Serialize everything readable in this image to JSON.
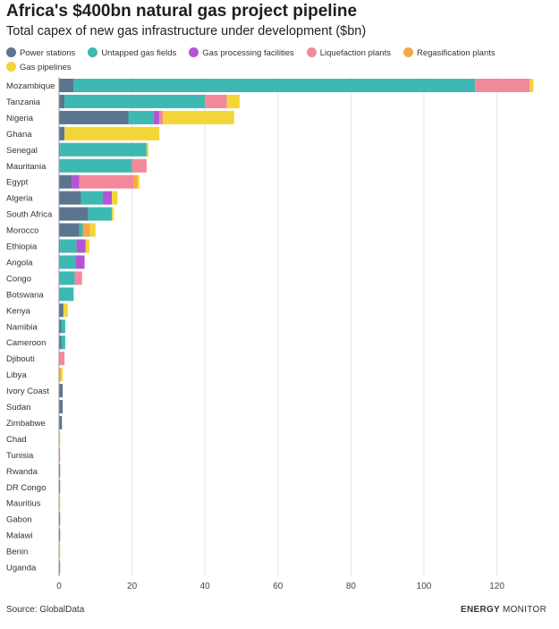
{
  "header": {
    "title": "Africa's $400bn natural gas project pipeline",
    "subtitle": "Total capex of new gas infrastructure under development ($bn)"
  },
  "footer": {
    "source": "Source: GlobalData",
    "brand_bold": "ENERGY",
    "brand_light": "MONITOR"
  },
  "chart_data": {
    "type": "bar",
    "orientation": "horizontal",
    "stacked": true,
    "categories": [
      "Mozambique",
      "Tanzania",
      "Nigeria",
      "Ghana",
      "Senegal",
      "Mauritania",
      "Egypt",
      "Algeria",
      "South Africa",
      "Morocco",
      "Ethiopia",
      "Angola",
      "Congo",
      "Botswana",
      "Kenya",
      "Namibia",
      "Cameroon",
      "Djibouti",
      "Libya",
      "Ivory Coast",
      "Sudan",
      "Zimbabwe",
      "Chad",
      "Tunisia",
      "Rwanda",
      "DR Congo",
      "Mauritius",
      "Gabon",
      "Malawi",
      "Benin",
      "Uganda"
    ],
    "xlim": [
      0,
      130
    ],
    "xticks": [
      0,
      20,
      40,
      60,
      80,
      100,
      120
    ],
    "grid": true,
    "legend_position": "top",
    "series": [
      {
        "name": "Power stations",
        "color": "#5b7490",
        "values": [
          4,
          1.5,
          19,
          1.5,
          0.3,
          0.2,
          3.5,
          6,
          8,
          5.5,
          0.3,
          0,
          0,
          0,
          1.2,
          0.7,
          0.7,
          0,
          0,
          1,
          1,
          0.8,
          0,
          0,
          0.3,
          0.3,
          0,
          0.3,
          0.3,
          0,
          0
        ]
      },
      {
        "name": "Untapped gas fields",
        "color": "#3db8b3",
        "values": [
          110,
          38.5,
          7,
          0,
          23.7,
          19.8,
          0,
          6,
          6.5,
          1,
          4.5,
          4.5,
          4.3,
          4,
          0,
          1,
          1,
          0,
          0,
          0,
          0,
          0,
          0,
          0,
          0,
          0,
          0,
          0,
          0,
          0,
          0
        ]
      },
      {
        "name": "Gas processing facilities",
        "color": "#b454d6",
        "values": [
          0,
          0,
          1.5,
          0,
          0,
          0,
          2,
          2.5,
          0,
          0,
          2.5,
          2.5,
          0,
          0,
          0,
          0,
          0,
          0,
          0,
          0,
          0,
          0,
          0,
          0,
          0,
          0,
          0,
          0,
          0,
          0,
          0.3
        ]
      },
      {
        "name": "Liquefaction plants",
        "color": "#f2899a",
        "values": [
          15,
          6,
          1,
          0,
          0,
          4,
          15,
          0,
          0,
          0,
          0,
          0,
          2,
          0,
          0,
          0,
          0,
          1.5,
          0,
          0,
          0,
          0,
          0,
          0.3,
          0,
          0,
          0,
          0,
          0,
          0,
          0
        ]
      },
      {
        "name": "Regasification plants",
        "color": "#f4a84a",
        "values": [
          0,
          0,
          0,
          0,
          0,
          0,
          1,
          0,
          0,
          2,
          0,
          0,
          0,
          0,
          0,
          0,
          0,
          0,
          0.5,
          0,
          0,
          0,
          0,
          0,
          0,
          0,
          0,
          0,
          0,
          0,
          0
        ]
      },
      {
        "name": "Gas pipelines",
        "color": "#f2d637",
        "values": [
          1,
          3.5,
          19.5,
          26,
          0.5,
          0,
          0.5,
          1.5,
          0.5,
          1.5,
          1,
          0,
          0,
          0,
          1.2,
          0,
          0,
          0,
          0.5,
          0,
          0,
          0,
          0.3,
          0,
          0,
          0,
          0.3,
          0,
          0,
          0.3,
          0
        ]
      }
    ]
  }
}
